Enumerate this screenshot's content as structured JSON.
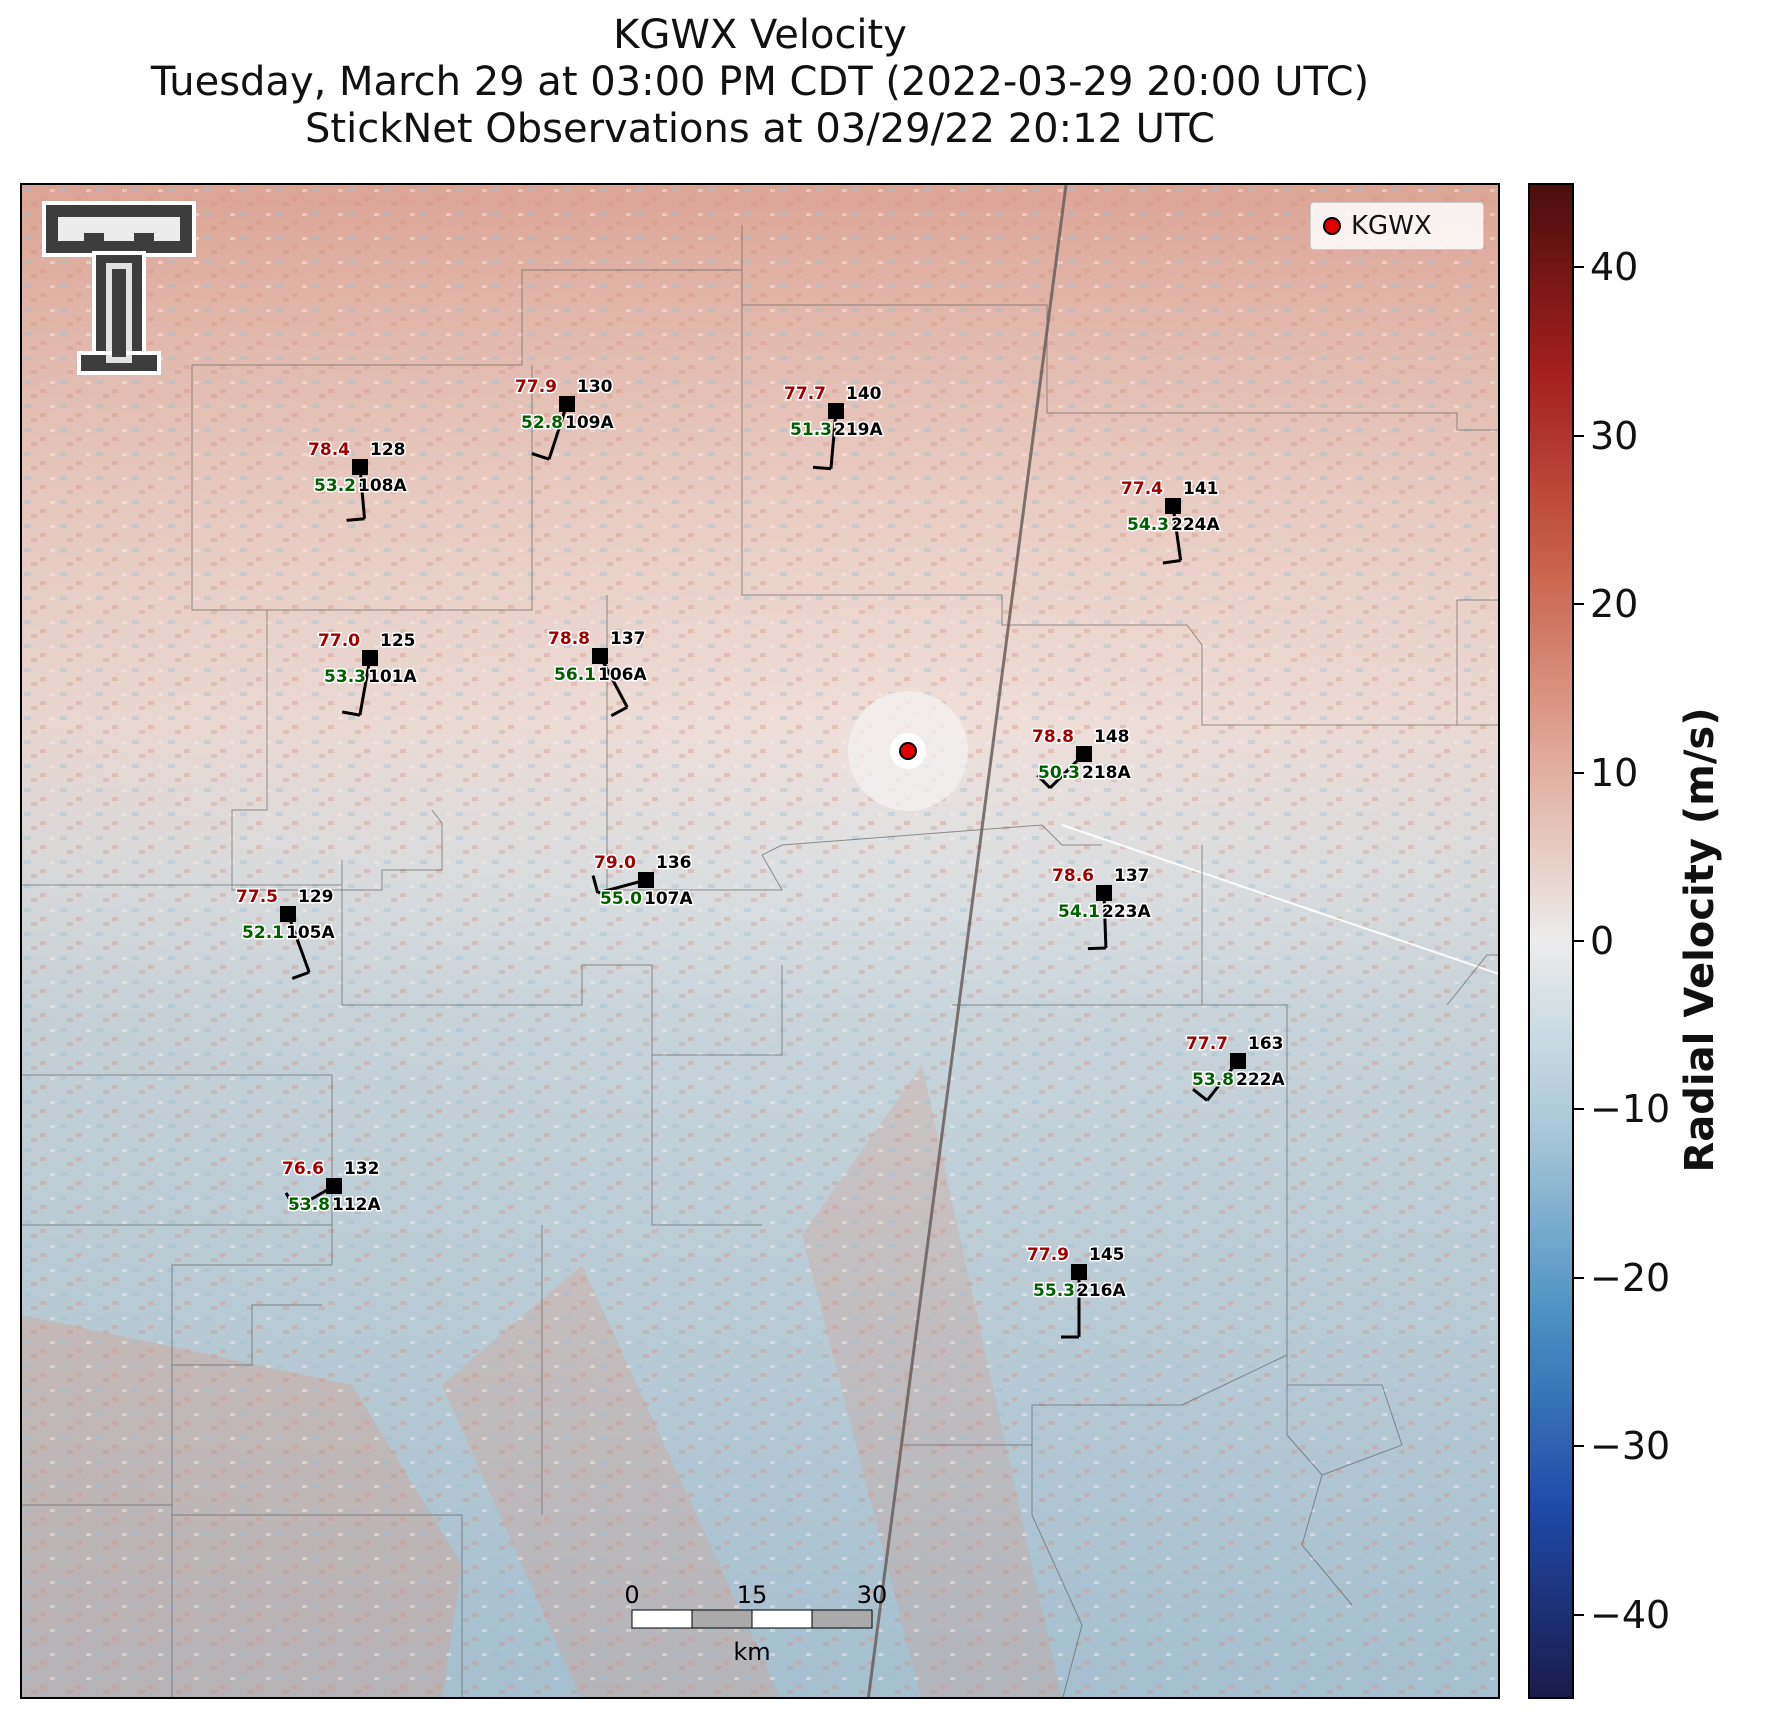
{
  "title": {
    "line1": "KGWX Velocity",
    "line2": "Tuesday, March 29 at 03:00 PM CDT (2022-03-29 20:00 UTC)",
    "line3": "StickNet Observations at 03/29/22 20:12 UTC"
  },
  "legend": {
    "label": "KGWX",
    "marker_color": "#e00000"
  },
  "colorbar": {
    "label": "Radial Velocity (m/s)",
    "ticks": [
      "40",
      "30",
      "20",
      "10",
      "0",
      "−10",
      "−20",
      "−30",
      "−40"
    ],
    "tick_values": [
      40,
      30,
      20,
      10,
      0,
      -10,
      -20,
      -30,
      -40
    ],
    "range": [
      -45,
      45
    ],
    "colors": [
      "#1b1b4a",
      "#1f4aa8",
      "#4a90c2",
      "#a9c8d8",
      "#ececec",
      "#e0a898",
      "#c8614a",
      "#a5201e",
      "#4a0e0e"
    ]
  },
  "scale_bar": {
    "labels": [
      "0",
      "15",
      "30"
    ],
    "unit": "km"
  },
  "logo": {
    "name": "Texas Tech Double T"
  },
  "stations": [
    {
      "id": "101A",
      "temp": "77.0",
      "dew": "53.3",
      "pres": "125"
    },
    {
      "id": "105A",
      "temp": "77.5",
      "dew": "52.1",
      "pres": "129"
    },
    {
      "id": "106A",
      "temp": "78.8",
      "dew": "56.1",
      "pres": "137"
    },
    {
      "id": "107A",
      "temp": "79.0",
      "dew": "55.0",
      "pres": "136"
    },
    {
      "id": "108A",
      "temp": "78.4",
      "dew": "53.2",
      "pres": "128"
    },
    {
      "id": "109A",
      "temp": "77.9",
      "dew": "52.8",
      "pres": "130"
    },
    {
      "id": "112A",
      "temp": "76.6",
      "dew": "53.8",
      "pres": "132"
    },
    {
      "id": "216A",
      "temp": "77.9",
      "dew": "55.3",
      "pres": "145"
    },
    {
      "id": "218A",
      "temp": "78.8",
      "dew": "50.3",
      "pres": "148"
    },
    {
      "id": "219A",
      "temp": "77.7",
      "dew": "51.3",
      "pres": "140"
    },
    {
      "id": "222A",
      "temp": "77.7",
      "dew": "53.8",
      "pres": "163"
    },
    {
      "id": "223A",
      "temp": "78.6",
      "dew": "54.1",
      "pres": "137"
    },
    {
      "id": "224A",
      "temp": "77.4",
      "dew": "54.3",
      "pres": "141"
    }
  ],
  "colors": {
    "temp": "#a00000",
    "dew": "#006000",
    "pressure": "#000000",
    "county_lines": "#555555"
  }
}
